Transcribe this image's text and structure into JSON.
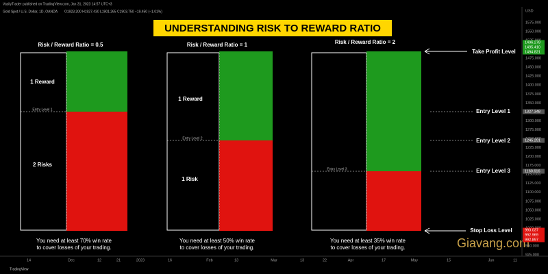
{
  "header": {
    "publisher": "VasilyTrader published on TradingView.com, Jan 31, 2023 14:57 UTC+3",
    "symbol": "Gold Spot / U.S. Dollar, 1D, OANDA",
    "ohlc": "O1923.200 H1927.430 L1901.265 C1903.750 −19.450 (−1.01%)"
  },
  "title": "UNDERSTANDING RISK TO REWARD RATIO",
  "panels": [
    {
      "heading": "Risk / Reward Ratio = 0.5",
      "reward": "1 Reward",
      "entry": "Entry Level 1",
      "risk": "2 Risks",
      "note": [
        "You need at least 70% win rate",
        "to cover losses of your trading."
      ]
    },
    {
      "heading": "Risk / Reward Ratio = 1",
      "reward": "1 Reward",
      "entry": "Entry Level 2",
      "risk": "1 Risk",
      "note": [
        "You need at least 50% win rate",
        "to cover losses of your trading."
      ]
    },
    {
      "heading": "Risk / Reward Ratio = 2",
      "entry": "Entry Level 3",
      "note": [
        "You need at least 35% win rate",
        "to cover losses of your trading."
      ]
    }
  ],
  "levels": {
    "take_profit": "Take Profit Level",
    "entry1": "Entry Level 1",
    "entry2": "Entry Level 2",
    "entry3": "Entry Level 3",
    "stop_loss": "Stop Loss Level"
  },
  "price_axis": {
    "currency": "USD",
    "ticks": [
      "1575.000",
      "1550.000",
      "1525.000",
      "1500.000",
      "1475.000",
      "1450.000",
      "1425.000",
      "1400.000",
      "1375.000",
      "1350.000",
      "1325.000",
      "1300.000",
      "1275.000",
      "1250.000",
      "1225.000",
      "1200.000",
      "1175.000",
      "1150.000",
      "1125.000",
      "1100.000",
      "1075.000",
      "1050.000",
      "1025.000",
      "1000.000",
      "975.000",
      "950.000",
      "925.000"
    ],
    "tp_tags": [
      "1496.278",
      "1495.410",
      "1494.821"
    ],
    "entry_tags": [
      "1327.348",
      "1245.291",
      "1160.616"
    ],
    "sl_tags": [
      "993.037",
      "992.969",
      "992.897"
    ]
  },
  "time_axis": [
    "14",
    "Dec",
    "12",
    "21",
    "2023",
    "16",
    "Feb",
    "13",
    "Mar",
    "13",
    "22",
    "Apr",
    "17",
    "May",
    "15",
    "Jun",
    "11"
  ],
  "footer": "TradingView",
  "watermark": "Giavang.com"
}
